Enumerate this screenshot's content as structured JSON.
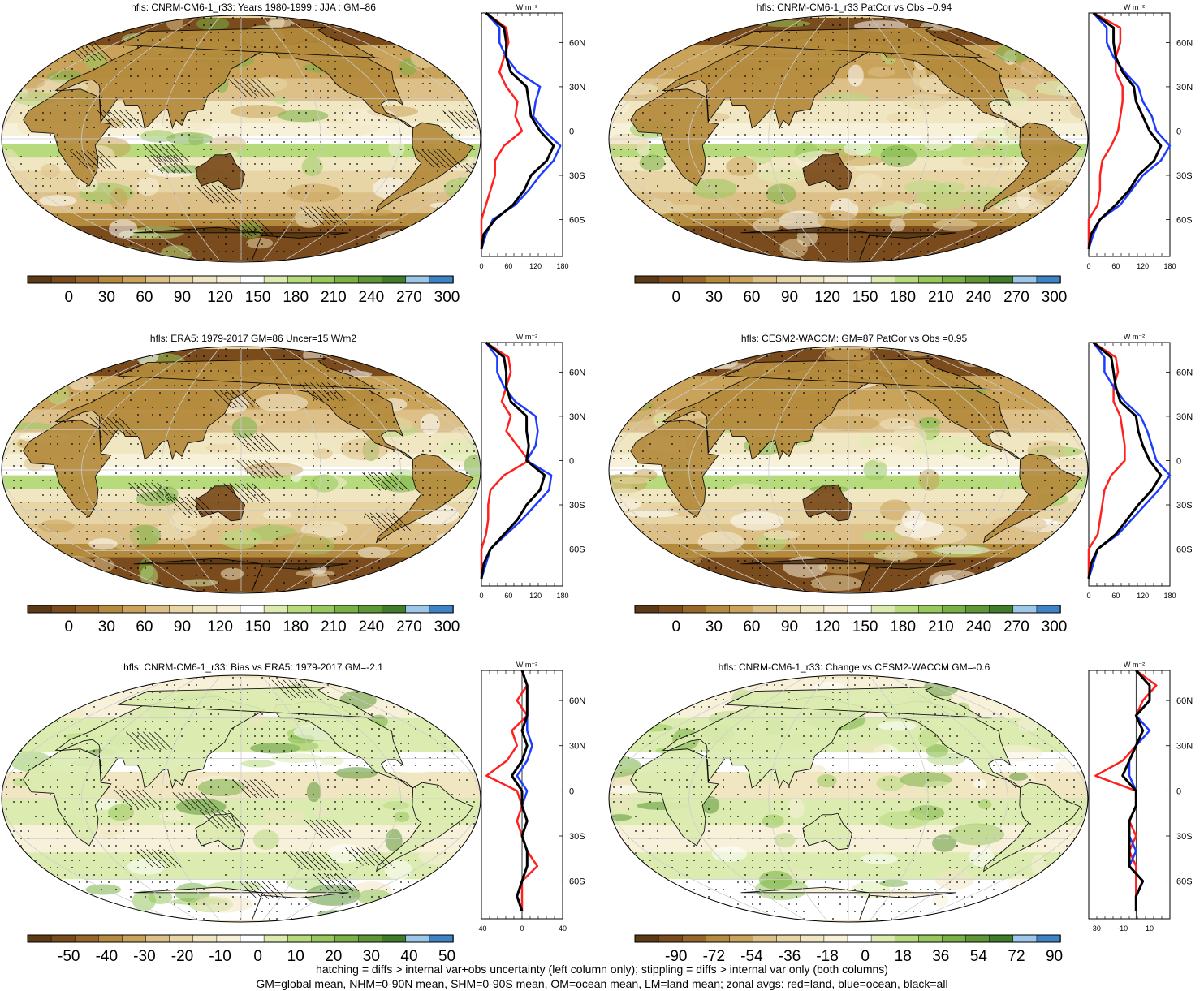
{
  "panels": [
    {
      "title": "hfls: CNRM-CM6-1_r33: Years 1980-1999 : JJA : GM=86",
      "palette": "abs",
      "cbar_labels": [
        "0",
        "30",
        "60",
        "90",
        "120",
        "150",
        "180",
        "210",
        "240",
        "270",
        "300"
      ],
      "profile_ticks": [
        "0",
        "60",
        "120",
        "180"
      ],
      "profile_range": [
        0,
        180
      ]
    },
    {
      "title": "hfls: CNRM-CM6-1_r33 PatCor vs Obs =0.94",
      "palette": "abs",
      "cbar_labels": [
        "0",
        "30",
        "60",
        "90",
        "120",
        "150",
        "180",
        "210",
        "240",
        "270",
        "300"
      ],
      "profile_ticks": [
        "0",
        "60",
        "120",
        "180"
      ],
      "profile_range": [
        0,
        180
      ]
    },
    {
      "title": "hfls: ERA5: 1979-2017 GM=86 Uncer=15 W/m2",
      "palette": "abs",
      "cbar_labels": [
        "0",
        "30",
        "60",
        "90",
        "120",
        "150",
        "180",
        "210",
        "240",
        "270",
        "300"
      ],
      "profile_ticks": [
        "0",
        "60",
        "120",
        "180"
      ],
      "profile_range": [
        0,
        180
      ]
    },
    {
      "title": "hfls: CESM2-WACCM: GM=87 PatCor vs Obs =0.95",
      "palette": "abs",
      "cbar_labels": [
        "0",
        "30",
        "60",
        "90",
        "120",
        "150",
        "180",
        "210",
        "240",
        "270",
        "300"
      ],
      "profile_ticks": [
        "0",
        "60",
        "120",
        "180"
      ],
      "profile_range": [
        0,
        180
      ]
    },
    {
      "title": "hfls: CNRM-CM6-1_r33: Bias vs ERA5: 1979-2017 GM=-2.1",
      "palette": "diff",
      "cbar_labels": [
        "-50",
        "-40",
        "-30",
        "-20",
        "-10",
        "0",
        "10",
        "20",
        "30",
        "40",
        "50"
      ],
      "profile_ticks": [
        "-40",
        "0",
        "40"
      ],
      "profile_range": [
        -40,
        40
      ]
    },
    {
      "title": "hfls: CNRM-CM6-1_r33: Change vs CESM2-WACCM GM=-0.6",
      "palette": "diff",
      "cbar_labels": [
        "-90",
        "-72",
        "-54",
        "-36",
        "-18",
        "0",
        "18",
        "36",
        "54",
        "72",
        "90"
      ],
      "profile_ticks": [
        "-30",
        "-10",
        "10"
      ],
      "profile_range": [
        -35,
        25
      ]
    }
  ],
  "lat_labels": [
    "60N",
    "30N",
    "0",
    "30S",
    "60S"
  ],
  "units_label": "W m⁻²",
  "colors": {
    "abs": [
      "#5b3a15",
      "#7a4b1c",
      "#98652a",
      "#b48a3c",
      "#c9a35a",
      "#dcc088",
      "#e8d5a6",
      "#f1e6c2",
      "#f8f1da",
      "#ffffff",
      "#dcecb0",
      "#b7da7d",
      "#97c85b",
      "#79b144",
      "#5d9736",
      "#3f7d2a",
      "#9cc7e8",
      "#3e83c6"
    ],
    "profile_land": "#ff2020",
    "profile_ocean": "#1e3cff",
    "profile_all": "#000000"
  },
  "footer": {
    "line1": "hatching = diffs > internal var+obs uncertainty (left column only); stippling = diffs > internal var only (both columns)",
    "line2": "GM=global mean, NHM=0-90N mean, SHM=0-90S mean, OM=ocean mean, LM=land mean; zonal avgs: red=land, blue=ocean, black=all"
  },
  "chart_data": [
    {
      "type": "heatmap",
      "title": "hfls: CNRM-CM6-1_r33: Years 1980-1999 : JJA : GM=86",
      "colorbar_ticks": [
        0,
        30,
        60,
        90,
        120,
        150,
        180,
        210,
        240,
        270,
        300
      ],
      "zonal_profile": {
        "lat": [
          80,
          70,
          60,
          50,
          40,
          30,
          20,
          10,
          0,
          -10,
          -20,
          -30,
          -40,
          -50,
          -60,
          -70,
          -80
        ],
        "land": [
          10,
          55,
          60,
          50,
          40,
          55,
          80,
          75,
          90,
          50,
          30,
          30,
          20,
          10,
          0,
          0,
          0
        ],
        "ocean": [
          10,
          40,
          40,
          55,
          80,
          130,
          120,
          115,
          140,
          175,
          160,
          130,
          105,
          75,
          25,
          10,
          0
        ],
        "all": [
          10,
          50,
          55,
          55,
          65,
          100,
          105,
          110,
          130,
          160,
          145,
          110,
          95,
          70,
          30,
          5,
          0
        ]
      }
    },
    {
      "type": "heatmap",
      "title": "hfls: CNRM-CM6-1_r33 PatCor vs Obs =0.94",
      "colorbar_ticks": [
        0,
        30,
        60,
        90,
        120,
        150,
        180,
        210,
        240,
        270,
        300
      ],
      "zonal_profile": {
        "lat": [
          80,
          70,
          60,
          50,
          40,
          30,
          20,
          10,
          0,
          -10,
          -20,
          -30,
          -40,
          -50,
          -60,
          -70,
          -80
        ],
        "land": [
          10,
          70,
          70,
          60,
          60,
          75,
          75,
          70,
          65,
          50,
          30,
          25,
          25,
          20,
          0,
          0,
          0
        ],
        "ocean": [
          10,
          40,
          40,
          55,
          80,
          110,
          120,
          140,
          150,
          180,
          160,
          120,
          95,
          70,
          25,
          10,
          0
        ],
        "all": [
          10,
          55,
          55,
          60,
          75,
          100,
          105,
          120,
          135,
          160,
          145,
          110,
          90,
          60,
          25,
          5,
          0
        ]
      }
    },
    {
      "type": "heatmap",
      "title": "hfls: ERA5: 1979-2017 GM=86 Uncer=15 W/m2",
      "colorbar_ticks": [
        0,
        30,
        60,
        90,
        120,
        150,
        180,
        210,
        240,
        270,
        300
      ],
      "zonal_profile": {
        "lat": [
          80,
          70,
          60,
          50,
          40,
          30,
          20,
          10,
          0,
          -10,
          -20,
          -30,
          -40,
          -50,
          -60,
          -70,
          -80
        ],
        "land": [
          10,
          60,
          65,
          55,
          45,
          65,
          55,
          80,
          105,
          50,
          20,
          15,
          15,
          10,
          0,
          0,
          0
        ],
        "ocean": [
          10,
          35,
          35,
          50,
          75,
          120,
          125,
          120,
          100,
          155,
          150,
          120,
          90,
          55,
          20,
          10,
          0
        ],
        "all": [
          10,
          50,
          55,
          55,
          65,
          100,
          100,
          105,
          100,
          140,
          130,
          100,
          80,
          50,
          20,
          5,
          0
        ]
      }
    },
    {
      "type": "heatmap",
      "title": "hfls: CESM2-WACCM: GM=87 PatCor vs Obs =0.95",
      "colorbar_ticks": [
        0,
        30,
        60,
        90,
        120,
        150,
        180,
        210,
        240,
        270,
        300
      ],
      "zonal_profile": {
        "lat": [
          80,
          70,
          60,
          50,
          40,
          30,
          20,
          10,
          0,
          -10,
          -20,
          -30,
          -40,
          -50,
          -60,
          -70,
          -80
        ],
        "land": [
          10,
          60,
          65,
          55,
          55,
          70,
          75,
          80,
          80,
          50,
          35,
          30,
          25,
          20,
          0,
          0,
          0
        ],
        "ocean": [
          10,
          35,
          35,
          55,
          80,
          115,
          130,
          140,
          150,
          180,
          155,
          125,
          95,
          65,
          20,
          10,
          0
        ],
        "all": [
          10,
          50,
          55,
          60,
          70,
          105,
          110,
          120,
          135,
          160,
          140,
          110,
          85,
          60,
          20,
          5,
          0
        ]
      }
    },
    {
      "type": "heatmap",
      "title": "hfls: CNRM-CM6-1_r33: Bias vs ERA5: 1979-2017 GM=-2.1",
      "colorbar_ticks": [
        -50,
        -40,
        -30,
        -20,
        -10,
        0,
        10,
        20,
        30,
        40,
        50
      ],
      "zonal_profile": {
        "lat": [
          80,
          70,
          60,
          50,
          40,
          30,
          20,
          10,
          0,
          -10,
          -20,
          -30,
          -40,
          -50,
          -60,
          -70,
          -80
        ],
        "land": [
          0,
          5,
          -5,
          5,
          -10,
          -5,
          -15,
          -35,
          -5,
          0,
          -5,
          0,
          5,
          15,
          0,
          0,
          0
        ],
        "ocean": [
          0,
          5,
          5,
          5,
          5,
          10,
          5,
          -5,
          5,
          0,
          5,
          0,
          5,
          5,
          0,
          -5,
          0
        ],
        "all": [
          0,
          5,
          5,
          5,
          0,
          5,
          0,
          -10,
          0,
          0,
          5,
          0,
          5,
          5,
          0,
          -5,
          0
        ]
      }
    },
    {
      "type": "heatmap",
      "title": "hfls: CNRM-CM6-1_r33: Change vs CESM2-WACCM GM=-0.6",
      "colorbar_ticks": [
        -90,
        -72,
        -54,
        -36,
        -18,
        0,
        18,
        36,
        54,
        72,
        90
      ],
      "zonal_profile": {
        "lat": [
          80,
          70,
          60,
          50,
          40,
          30,
          20,
          10,
          0,
          -10,
          -20,
          -30,
          -40,
          -50,
          -60,
          -70,
          -80
        ],
        "land": [
          0,
          15,
          5,
          0,
          5,
          0,
          -10,
          -30,
          0,
          0,
          -5,
          0,
          -5,
          0,
          0,
          0,
          0
        ],
        "ocean": [
          0,
          10,
          10,
          0,
          10,
          0,
          -5,
          -5,
          0,
          0,
          -5,
          -5,
          0,
          -5,
          5,
          0,
          0
        ],
        "all": [
          0,
          10,
          10,
          0,
          5,
          0,
          -5,
          -10,
          0,
          0,
          -5,
          -5,
          -5,
          -5,
          5,
          0,
          0
        ]
      }
    }
  ]
}
